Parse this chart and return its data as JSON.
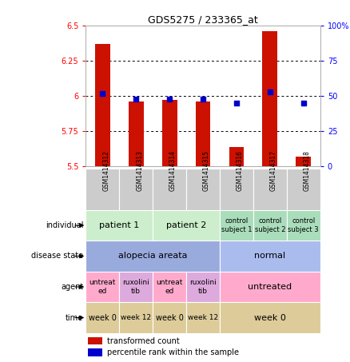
{
  "title": "GDS5275 / 233365_at",
  "samples": [
    "GSM1414312",
    "GSM1414313",
    "GSM1414314",
    "GSM1414315",
    "GSM1414316",
    "GSM1414317",
    "GSM1414318"
  ],
  "transformed_count": [
    6.37,
    5.96,
    5.97,
    5.96,
    5.64,
    6.46,
    5.57
  ],
  "percentile_rank": [
    52,
    48,
    48,
    48,
    45,
    53,
    45
  ],
  "ylim_left": [
    5.5,
    6.5
  ],
  "ylim_right": [
    0,
    100
  ],
  "yticks_left": [
    5.5,
    5.75,
    6.0,
    6.25,
    6.5
  ],
  "yticks_right": [
    0,
    25,
    50,
    75,
    100
  ],
  "ytick_labels_left": [
    "5.5",
    "5.75",
    "6",
    "6.25",
    "6.5"
  ],
  "ytick_labels_right": [
    "0",
    "25",
    "50",
    "75",
    "100%"
  ],
  "bar_color": "#cc1100",
  "dot_color": "#0000cc",
  "sample_box_color": "#cccccc",
  "annotation_rows": {
    "individual": {
      "label": "individual",
      "groups": [
        {
          "span": [
            0,
            1
          ],
          "text": "patient 1",
          "color": "#cceecc",
          "fontsize": 8
        },
        {
          "span": [
            2,
            3
          ],
          "text": "patient 2",
          "color": "#cceecc",
          "fontsize": 8
        },
        {
          "span": [
            4,
            4
          ],
          "text": "control\nsubject 1",
          "color": "#aaddbb",
          "fontsize": 6
        },
        {
          "span": [
            5,
            5
          ],
          "text": "control\nsubject 2",
          "color": "#aaddbb",
          "fontsize": 6
        },
        {
          "span": [
            6,
            6
          ],
          "text": "control\nsubject 3",
          "color": "#aaddbb",
          "fontsize": 6
        }
      ]
    },
    "disease_state": {
      "label": "disease state",
      "groups": [
        {
          "span": [
            0,
            3
          ],
          "text": "alopecia areata",
          "color": "#99aadd",
          "fontsize": 8
        },
        {
          "span": [
            4,
            6
          ],
          "text": "normal",
          "color": "#aabbee",
          "fontsize": 8
        }
      ]
    },
    "agent": {
      "label": "agent",
      "groups": [
        {
          "span": [
            0,
            0
          ],
          "text": "untreat\ned",
          "color": "#ffaacc",
          "fontsize": 6.5
        },
        {
          "span": [
            1,
            1
          ],
          "text": "ruxolini\ntib",
          "color": "#ddaadd",
          "fontsize": 6.5
        },
        {
          "span": [
            2,
            2
          ],
          "text": "untreat\ned",
          "color": "#ffaacc",
          "fontsize": 6.5
        },
        {
          "span": [
            3,
            3
          ],
          "text": "ruxolini\ntib",
          "color": "#ddaadd",
          "fontsize": 6.5
        },
        {
          "span": [
            4,
            6
          ],
          "text": "untreated",
          "color": "#ffaacc",
          "fontsize": 8
        }
      ]
    },
    "time": {
      "label": "time",
      "groups": [
        {
          "span": [
            0,
            0
          ],
          "text": "week 0",
          "color": "#ddcc99",
          "fontsize": 7
        },
        {
          "span": [
            1,
            1
          ],
          "text": "week 12",
          "color": "#ddcc99",
          "fontsize": 6.5
        },
        {
          "span": [
            2,
            2
          ],
          "text": "week 0",
          "color": "#ddcc99",
          "fontsize": 7
        },
        {
          "span": [
            3,
            3
          ],
          "text": "week 12",
          "color": "#ddcc99",
          "fontsize": 6.5
        },
        {
          "span": [
            4,
            6
          ],
          "text": "week 0",
          "color": "#ddcc99",
          "fontsize": 8
        }
      ]
    }
  },
  "row_order": [
    "individual",
    "disease_state",
    "agent",
    "time"
  ],
  "legend": [
    {
      "color": "#cc1100",
      "label": "transformed count"
    },
    {
      "color": "#0000cc",
      "label": "percentile rank within the sample"
    }
  ]
}
